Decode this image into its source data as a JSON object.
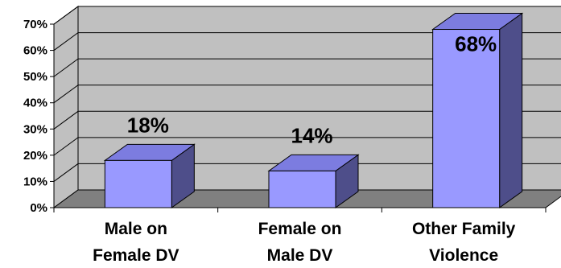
{
  "chart_data": {
    "type": "bar",
    "categories": [
      [
        "Male on",
        "Female DV"
      ],
      [
        "Female on",
        "Male DV"
      ],
      [
        "Other Family",
        "Violence"
      ]
    ],
    "values": [
      18,
      14,
      68
    ],
    "data_labels": [
      "18%",
      "14%",
      "68%"
    ],
    "ylim": [
      0,
      70
    ],
    "y_ticks": [
      "0%",
      "10%",
      "20%",
      "30%",
      "40%",
      "50%",
      "60%",
      "70%"
    ],
    "grid": true,
    "legend": "none",
    "style": "3d",
    "colors": {
      "bar_front": "#9999ff",
      "bar_top": "#7c7ce0",
      "bar_side": "#4e4e8a",
      "wall": "#c0c0c0",
      "floor": "#808080",
      "gridline": "#000000"
    }
  }
}
